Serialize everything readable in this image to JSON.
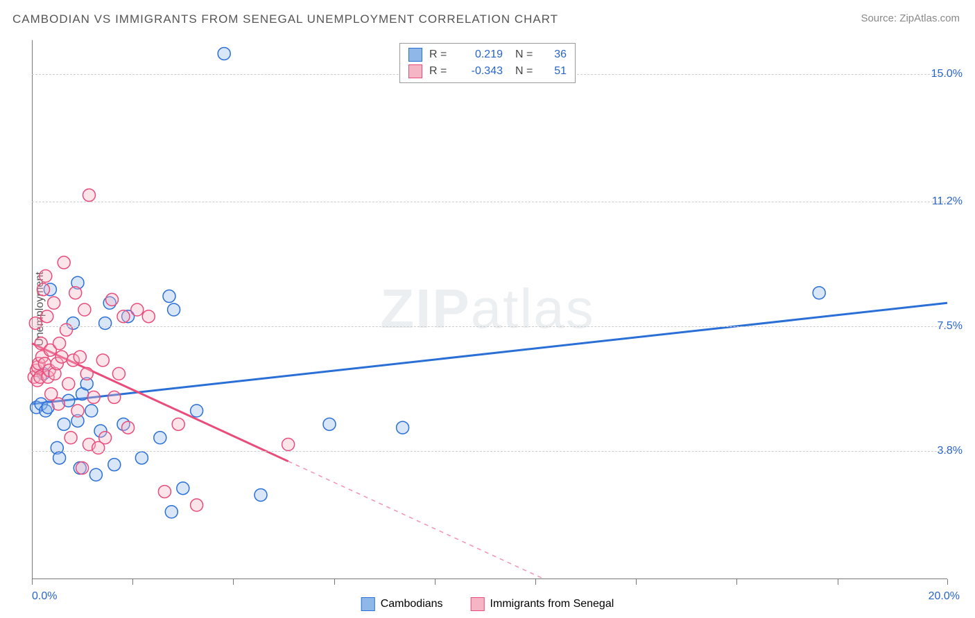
{
  "title": "CAMBODIAN VS IMMIGRANTS FROM SENEGAL UNEMPLOYMENT CORRELATION CHART",
  "source": "Source: ZipAtlas.com",
  "watermark": {
    "bold": "ZIP",
    "rest": "atlas"
  },
  "ylabel": "Unemployment",
  "chart": {
    "type": "scatter-with-trend",
    "background_color": "#ffffff",
    "grid_color": "#cccccc",
    "title_fontsize": 17,
    "title_color": "#555555",
    "label_fontsize": 16,
    "axis_color": "#777777",
    "xlim": [
      0,
      20
    ],
    "ylim": [
      0,
      16
    ],
    "x_tick_positions": [
      0,
      2.2,
      4.4,
      6.6,
      8.8,
      11.0,
      13.2,
      15.4,
      17.6,
      20.0
    ],
    "x_axis_end_labels": {
      "left": "0.0%",
      "right": "20.0%",
      "color": "#2864c8"
    },
    "y_gridlines": [
      {
        "value": 3.8,
        "label": "3.8%"
      },
      {
        "value": 7.5,
        "label": "7.5%"
      },
      {
        "value": 11.2,
        "label": "11.2%"
      },
      {
        "value": 15.0,
        "label": "15.0%"
      }
    ],
    "y_tick_label_color": "#2864c8",
    "point_radius": 9,
    "series": [
      {
        "key": "cambodians",
        "label": "Cambodians",
        "color_fill": "#8fb8e8",
        "color_stroke": "#2a6fd6",
        "r_value": "0.219",
        "n_value": "36",
        "trend": {
          "x1": 0,
          "y1": 5.2,
          "x2": 20,
          "y2": 8.2,
          "solid_until_x": 20,
          "stroke_width": 3
        },
        "points": [
          {
            "x": 0.1,
            "y": 5.1
          },
          {
            "x": 0.2,
            "y": 5.2
          },
          {
            "x": 0.3,
            "y": 5.0
          },
          {
            "x": 0.35,
            "y": 5.1
          },
          {
            "x": 0.25,
            "y": 6.1
          },
          {
            "x": 0.4,
            "y": 8.6
          },
          {
            "x": 0.55,
            "y": 3.9
          },
          {
            "x": 0.6,
            "y": 3.6
          },
          {
            "x": 0.7,
            "y": 4.6
          },
          {
            "x": 0.8,
            "y": 5.3
          },
          {
            "x": 0.9,
            "y": 7.6
          },
          {
            "x": 1.0,
            "y": 8.8
          },
          {
            "x": 1.0,
            "y": 4.7
          },
          {
            "x": 1.05,
            "y": 3.3
          },
          {
            "x": 1.1,
            "y": 5.5
          },
          {
            "x": 1.2,
            "y": 5.8
          },
          {
            "x": 1.3,
            "y": 5.0
          },
          {
            "x": 1.4,
            "y": 3.1
          },
          {
            "x": 1.5,
            "y": 4.4
          },
          {
            "x": 1.6,
            "y": 7.6
          },
          {
            "x": 1.7,
            "y": 8.2
          },
          {
            "x": 1.8,
            "y": 3.4
          },
          {
            "x": 2.0,
            "y": 4.6
          },
          {
            "x": 2.1,
            "y": 7.8
          },
          {
            "x": 2.4,
            "y": 3.6
          },
          {
            "x": 2.8,
            "y": 4.2
          },
          {
            "x": 3.0,
            "y": 8.4
          },
          {
            "x": 3.05,
            "y": 2.0
          },
          {
            "x": 3.1,
            "y": 8.0
          },
          {
            "x": 3.3,
            "y": 2.7
          },
          {
            "x": 3.6,
            "y": 5.0
          },
          {
            "x": 4.2,
            "y": 15.6
          },
          {
            "x": 5.0,
            "y": 2.5
          },
          {
            "x": 6.5,
            "y": 4.6
          },
          {
            "x": 8.1,
            "y": 4.5
          },
          {
            "x": 17.2,
            "y": 8.5
          }
        ]
      },
      {
        "key": "senegal",
        "label": "Immigrants from Senegal",
        "color_fill": "#f6b5c4",
        "color_stroke": "#e94b7a",
        "r_value": "-0.343",
        "n_value": "51",
        "trend": {
          "x1": 0,
          "y1": 7.0,
          "x2": 11.2,
          "y2": 0,
          "solid_until_x": 5.6,
          "stroke_width": 3
        },
        "points": [
          {
            "x": 0.05,
            "y": 6.0
          },
          {
            "x": 0.08,
            "y": 7.6
          },
          {
            "x": 0.1,
            "y": 6.2
          },
          {
            "x": 0.12,
            "y": 5.9
          },
          {
            "x": 0.13,
            "y": 6.3
          },
          {
            "x": 0.15,
            "y": 6.4
          },
          {
            "x": 0.18,
            "y": 6.0
          },
          {
            "x": 0.2,
            "y": 7.0
          },
          {
            "x": 0.22,
            "y": 6.6
          },
          {
            "x": 0.25,
            "y": 8.6
          },
          {
            "x": 0.28,
            "y": 6.4
          },
          {
            "x": 0.3,
            "y": 9.0
          },
          {
            "x": 0.33,
            "y": 7.8
          },
          {
            "x": 0.35,
            "y": 6.0
          },
          {
            "x": 0.38,
            "y": 6.2
          },
          {
            "x": 0.4,
            "y": 6.8
          },
          {
            "x": 0.42,
            "y": 5.5
          },
          {
            "x": 0.48,
            "y": 8.2
          },
          {
            "x": 0.5,
            "y": 6.1
          },
          {
            "x": 0.55,
            "y": 6.4
          },
          {
            "x": 0.58,
            "y": 5.2
          },
          {
            "x": 0.6,
            "y": 7.0
          },
          {
            "x": 0.65,
            "y": 6.6
          },
          {
            "x": 0.7,
            "y": 9.4
          },
          {
            "x": 0.75,
            "y": 7.4
          },
          {
            "x": 0.8,
            "y": 5.8
          },
          {
            "x": 0.85,
            "y": 4.2
          },
          {
            "x": 0.9,
            "y": 6.5
          },
          {
            "x": 0.95,
            "y": 8.5
          },
          {
            "x": 1.0,
            "y": 5.0
          },
          {
            "x": 1.05,
            "y": 6.6
          },
          {
            "x": 1.1,
            "y": 3.3
          },
          {
            "x": 1.15,
            "y": 8.0
          },
          {
            "x": 1.2,
            "y": 6.1
          },
          {
            "x": 1.25,
            "y": 4.0
          },
          {
            "x": 1.25,
            "y": 11.4
          },
          {
            "x": 1.35,
            "y": 5.4
          },
          {
            "x": 1.45,
            "y": 3.9
          },
          {
            "x": 1.55,
            "y": 6.5
          },
          {
            "x": 1.6,
            "y": 4.2
          },
          {
            "x": 1.75,
            "y": 8.3
          },
          {
            "x": 1.8,
            "y": 5.4
          },
          {
            "x": 1.9,
            "y": 6.1
          },
          {
            "x": 2.0,
            "y": 7.8
          },
          {
            "x": 2.1,
            "y": 4.5
          },
          {
            "x": 2.3,
            "y": 8.0
          },
          {
            "x": 2.55,
            "y": 7.8
          },
          {
            "x": 2.9,
            "y": 2.6
          },
          {
            "x": 3.2,
            "y": 4.6
          },
          {
            "x": 3.6,
            "y": 2.2
          },
          {
            "x": 5.6,
            "y": 4.0
          }
        ]
      }
    ],
    "legend_top_labels": {
      "r": "R =",
      "n": "N ="
    }
  }
}
